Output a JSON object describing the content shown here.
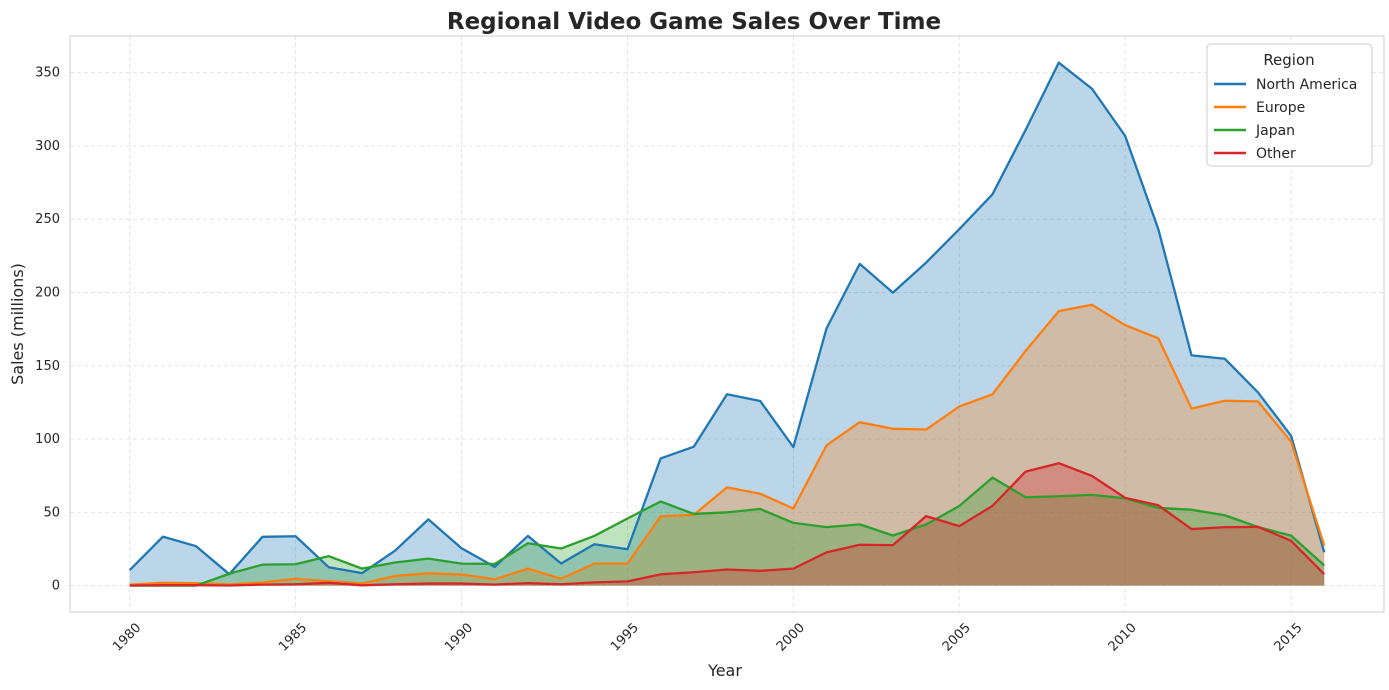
{
  "chart_data": {
    "type": "area",
    "title": "Regional Video Game Sales Over Time",
    "xlabel": "Year",
    "ylabel": "Sales (millions)",
    "xlim": [
      1978.2,
      2017.8
    ],
    "ylim": [
      -18,
      375
    ],
    "xticks": [
      1980,
      1985,
      1990,
      1995,
      2000,
      2005,
      2010,
      2015
    ],
    "yticks": [
      0,
      50,
      100,
      150,
      200,
      250,
      300,
      350
    ],
    "grid": true,
    "legend": {
      "title": "Region",
      "position": "top-right"
    },
    "x": [
      1980,
      1981,
      1982,
      1983,
      1984,
      1985,
      1986,
      1987,
      1988,
      1989,
      1990,
      1991,
      1992,
      1993,
      1994,
      1995,
      1996,
      1997,
      1998,
      1999,
      2000,
      2001,
      2002,
      2003,
      2004,
      2005,
      2006,
      2007,
      2008,
      2009,
      2010,
      2011,
      2012,
      2013,
      2014,
      2015,
      2016
    ],
    "series": [
      {
        "name": "North America",
        "color": "#1f77b4",
        "values": [
          10.6,
          33.4,
          26.9,
          7.8,
          33.3,
          33.7,
          12.5,
          8.5,
          23.9,
          45.2,
          25.5,
          12.8,
          33.9,
          15.1,
          28.2,
          24.8,
          86.8,
          94.8,
          130.6,
          126.0,
          94.5,
          175.5,
          219.5,
          199.9,
          220.4,
          243.2,
          267.0,
          310.9,
          356.8,
          339.0,
          306.8,
          243.1,
          157.1,
          154.8,
          131.9,
          102.2,
          22.7
        ]
      },
      {
        "name": "Europe",
        "color": "#ff7f0e",
        "values": [
          0.7,
          1.9,
          1.7,
          0.8,
          2.1,
          4.7,
          3.0,
          1.4,
          6.6,
          8.4,
          7.6,
          4.3,
          11.6,
          4.7,
          15.0,
          15.0,
          47.3,
          48.3,
          67.0,
          62.7,
          52.6,
          95.7,
          111.5,
          107.0,
          106.5,
          122.2,
          130.5,
          160.2,
          187.3,
          191.6,
          177.7,
          168.7,
          120.8,
          126.1,
          125.7,
          98.2,
          27.2
        ]
      },
      {
        "name": "Japan",
        "color": "#2ca02c",
        "values": [
          0.0,
          0.0,
          0.0,
          8.1,
          14.3,
          14.6,
          20.1,
          11.6,
          15.8,
          18.4,
          15.0,
          14.8,
          28.9,
          25.3,
          33.9,
          45.8,
          57.4,
          48.9,
          50.0,
          52.3,
          42.8,
          39.9,
          41.8,
          34.2,
          41.7,
          54.3,
          73.7,
          60.3,
          61.0,
          61.9,
          59.5,
          53.0,
          51.8,
          48.0,
          40.0,
          34.1,
          13.7
        ]
      },
      {
        "name": "Other",
        "color": "#d62728",
        "values": [
          0.1,
          0.3,
          0.3,
          0.1,
          0.7,
          0.9,
          1.9,
          0.2,
          0.9,
          1.4,
          1.4,
          0.7,
          1.7,
          0.9,
          2.2,
          2.9,
          7.7,
          9.1,
          11.0,
          10.1,
          11.6,
          22.7,
          27.9,
          27.6,
          47.4,
          40.6,
          54.4,
          77.8,
          83.5,
          74.8,
          59.9,
          54.8,
          38.6,
          39.8,
          40.1,
          30.6,
          7.8
        ]
      }
    ]
  }
}
